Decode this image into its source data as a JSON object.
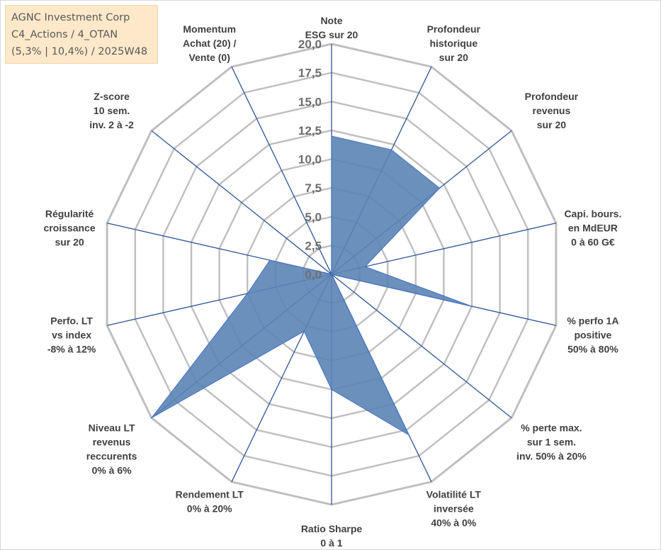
{
  "info": {
    "line1": "AGNC Investment Corp",
    "line2": "C4_Actions / 4_OTAN",
    "line3": "(5,3% | 10,4%) / 2025W48"
  },
  "colors": {
    "grid": "#bfbfbf",
    "spoke": "#2f5597",
    "fill": "#5b84b5",
    "stroke": "#4472c4"
  },
  "chart_data": {
    "type": "radar",
    "title": "",
    "rmin": 0,
    "rmax": 20,
    "ticks": [
      "0,0",
      "2,5",
      "5,0",
      "7,5",
      "10,0",
      "12,5",
      "15,0",
      "17,5",
      "20,0"
    ],
    "tick_values": [
      0,
      2.5,
      5,
      7.5,
      10,
      12.5,
      15,
      17.5,
      20
    ],
    "axes": [
      {
        "label": [
          "Note",
          "ESG sur 20"
        ],
        "value": 12
      },
      {
        "label": [
          "Profondeur",
          "historique",
          "sur 20"
        ],
        "value": 12
      },
      {
        "label": [
          "Profondeur",
          "revenus",
          "sur 20"
        ],
        "value": 12
      },
      {
        "label": [
          "Capi. bours.",
          "en MdEUR",
          "0 à 60 G€"
        ],
        "value": 3
      },
      {
        "label": [
          "% perfo 1A",
          "positive",
          "50% à 80%"
        ],
        "value": 12.5
      },
      {
        "label": [
          "% perte max.",
          "sur 1 sem.",
          "inv. 50% à 20%"
        ],
        "value": 0
      },
      {
        "label": [
          "Volatilité LT",
          "inversée",
          "40% à 0%"
        ],
        "value": 15.5
      },
      {
        "label": [
          "Ratio Sharpe",
          "0 à 1"
        ],
        "value": 10
      },
      {
        "label": [
          "Rendement LT",
          "0% à 20%"
        ],
        "value": 5.5
      },
      {
        "label": [
          "Niveau LT",
          "revenus",
          "reccurents",
          "0% à 6%"
        ],
        "value": 20
      },
      {
        "label": [
          "Perfo. LT",
          "vs index",
          "-8% à 12%"
        ],
        "value": 7.5
      },
      {
        "label": [
          "Régularité",
          "croissance",
          "sur 20"
        ],
        "value": 5.5
      },
      {
        "label": [
          "Z-score",
          "10 sem.",
          "inv. 2 à -2"
        ],
        "value": 0
      },
      {
        "label": [
          "Momentum",
          "Achat (20) /",
          "Vente (0)"
        ],
        "value": 0
      }
    ]
  }
}
